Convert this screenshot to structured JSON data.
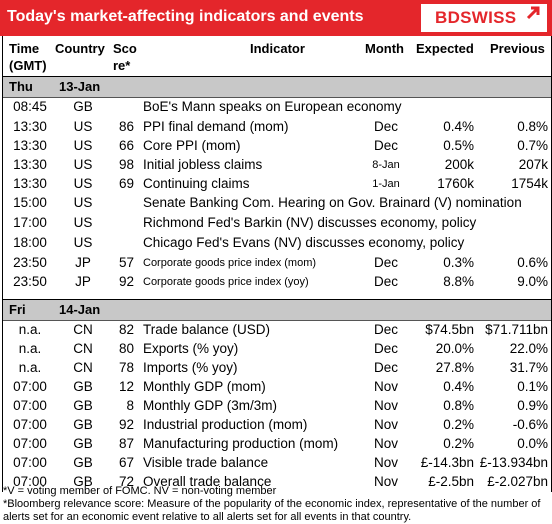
{
  "header": {
    "title": "Today's market-affecting indicators and events",
    "logo": "BDSWISS"
  },
  "columns": {
    "time": "Time\n(GMT)",
    "country": "Country",
    "score": "Sco\nre*",
    "indicator": "Indicator",
    "month": "Month",
    "expected": "Expected",
    "previous": "Previous"
  },
  "days": [
    {
      "weekday": "Thu",
      "date": "13-Jan",
      "rows": [
        {
          "time": "08:45",
          "country": "GB",
          "score": "",
          "indicator": "BoE's Mann speaks on European economy",
          "month": "",
          "expected": "",
          "previous": ""
        },
        {
          "time": "13:30",
          "country": "US",
          "score": "86",
          "indicator": "PPI final demand (mom)",
          "month": "Dec",
          "expected": "0.4%",
          "previous": "0.8%"
        },
        {
          "time": "13:30",
          "country": "US",
          "score": "66",
          "indicator": "Core PPI (mom)",
          "month": "Dec",
          "expected": "0.5%",
          "previous": "0.7%"
        },
        {
          "time": "13:30",
          "country": "US",
          "score": "98",
          "indicator": "Initial jobless claims",
          "month": "8-Jan",
          "expected": "200k",
          "previous": "207k"
        },
        {
          "time": "13:30",
          "country": "US",
          "score": "69",
          "indicator": "Continuing claims",
          "month": "1-Jan",
          "expected": "1760k",
          "previous": "1754k"
        },
        {
          "time": "15:00",
          "country": "US",
          "score": "",
          "indicator": "Senate Banking Com. Hearing on Gov. Brainard (V) nomination",
          "month": "",
          "expected": "",
          "previous": ""
        },
        {
          "time": "17:00",
          "country": "US",
          "score": "",
          "indicator": "Richmond Fed's Barkin (NV) discusses economy, policy",
          "month": "",
          "expected": "",
          "previous": ""
        },
        {
          "time": "18:00",
          "country": "US",
          "score": "",
          "indicator": "Chicago Fed's Evans (NV) discusses economy, policy",
          "month": "",
          "expected": "",
          "previous": ""
        },
        {
          "time": "23:50",
          "country": "JP",
          "score": "57",
          "indicator": "Corporate goods price index (mom)",
          "month": "Dec",
          "expected": "0.3%",
          "previous": "0.6%"
        },
        {
          "time": "23:50",
          "country": "JP",
          "score": "92",
          "indicator": "Corporate goods price index (yoy)",
          "month": "Dec",
          "expected": "8.8%",
          "previous": "9.0%"
        }
      ]
    },
    {
      "weekday": "Fri",
      "date": "14-Jan",
      "rows": [
        {
          "time": "n.a.",
          "country": "CN",
          "score": "82",
          "indicator": "Trade balance (USD)",
          "month": "Dec",
          "expected": "$74.5bn",
          "previous": "$71.711bn"
        },
        {
          "time": "n.a.",
          "country": "CN",
          "score": "80",
          "indicator": "Exports (% yoy)",
          "month": "Dec",
          "expected": "20.0%",
          "previous": "22.0%"
        },
        {
          "time": "n.a.",
          "country": "CN",
          "score": "78",
          "indicator": "Imports (% yoy)",
          "month": "Dec",
          "expected": "27.8%",
          "previous": "31.7%"
        },
        {
          "time": "07:00",
          "country": "GB",
          "score": "12",
          "indicator": "Monthly GDP (mom)",
          "month": "Nov",
          "expected": "0.4%",
          "previous": "0.1%"
        },
        {
          "time": "07:00",
          "country": "GB",
          "score": "8",
          "indicator": "Monthly GDP (3m/3m)",
          "month": "Nov",
          "expected": "0.8%",
          "previous": "0.9%"
        },
        {
          "time": "07:00",
          "country": "GB",
          "score": "92",
          "indicator": "Industrial production (mom)",
          "month": "Nov",
          "expected": "0.2%",
          "previous": "-0.6%"
        },
        {
          "time": "07:00",
          "country": "GB",
          "score": "87",
          "indicator": "Manufacturing production (mom)",
          "month": "Nov",
          "expected": "0.2%",
          "previous": "0.0%"
        },
        {
          "time": "07:00",
          "country": "GB",
          "score": "67",
          "indicator": "Visible trade balance",
          "month": "Nov",
          "expected": "£-14.3bn",
          "previous": "£-13.934bn"
        },
        {
          "time": "07:00",
          "country": "GB",
          "score": "72",
          "indicator": "Overall trade balance",
          "month": "Nov",
          "expected": "£-2.5bn",
          "previous": "£-2.027bn"
        }
      ]
    }
  ],
  "footnotes": [
    "*V = voting member of FOMC. NV = non-voting member",
    "*Bloomberg relevance score:  Measure of the popularity of the economic index, representative of the number of",
    "alerts set for an economic event relative to all alerts set for all events in that country."
  ],
  "colors": {
    "brand_red": "#e4262b",
    "day_band": "#c8c8c8"
  }
}
